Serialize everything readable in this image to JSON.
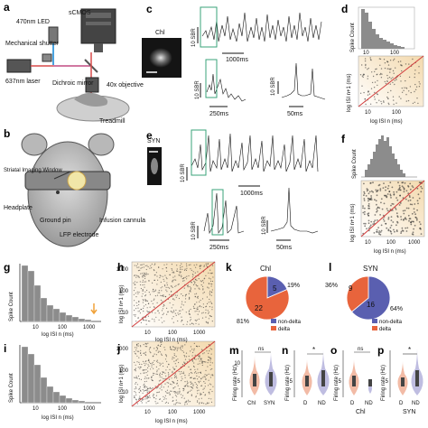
{
  "panel_letters": [
    "a",
    "b",
    "c",
    "d",
    "e",
    "f",
    "g",
    "h",
    "i",
    "j",
    "k",
    "l",
    "m",
    "n",
    "o",
    "p"
  ],
  "panel_a": {
    "labels": [
      "sCMOS",
      "470nm LED",
      "Mechanical shutter",
      "637nm laser",
      "Dichroic mirror",
      "40x objective",
      "Treadmill"
    ]
  },
  "panel_b": {
    "labels": [
      "Striatal Imaging Window",
      "Headplate",
      "Ground pin",
      "LFP electrode",
      "Infusion cannula"
    ]
  },
  "panel_c": {
    "cell_label": "Chl",
    "scale_sbr": "10 SBR",
    "scale_long": "1000ms",
    "scale_mid": "250ms",
    "scale_short": "50ms"
  },
  "panel_e": {
    "cell_label": "SYN",
    "scale_sbr": "10 SBR",
    "scale_long": "1000ms",
    "scale_mid": "250ms",
    "scale_short": "50ms"
  },
  "axes": {
    "spike_count": "Spike Count",
    "log_isi_n": "log ISI n (ms)",
    "log_isi_n1": "log ISI n+1 (ms)",
    "firing_rate": "Firing rate (Hz)"
  },
  "ticks": {
    "log": [
      "10",
      "100",
      "1000"
    ],
    "log_small": [
      "10",
      "100"
    ],
    "rate": [
      "5",
      "10"
    ],
    "rate_small": [
      "5"
    ]
  },
  "pies": {
    "k": {
      "title": "Chl",
      "nondelta_count": "5",
      "delta_count": "22",
      "nondelta_pct": "19%",
      "delta_pct": "81%"
    },
    "l": {
      "title": "SYN",
      "nondelta_count": "16",
      "delta_count": "9",
      "nondelta_pct": "64%",
      "delta_pct": "36%"
    },
    "legend": [
      "non-delta",
      "delta"
    ]
  },
  "violins": {
    "m": {
      "sig": "ns",
      "groups": [
        "Chl",
        "SYN"
      ]
    },
    "n": {
      "sig": "*",
      "groups": [
        "D",
        "ND"
      ]
    },
    "o": {
      "sig": "ns",
      "groups": [
        "D",
        "ND"
      ],
      "sub": "Chl"
    },
    "p": {
      "sig": "*",
      "groups": [
        "D",
        "ND"
      ],
      "sub": "SYN"
    }
  },
  "colors": {
    "nondelta": "#5a5fb0",
    "delta": "#e8643c",
    "trace_box": "#3aa37a",
    "unity_line": "#d23b3b",
    "hist_bar": "#8c8c8c",
    "scatter_bg": "#f6e3c4",
    "arrow": "#f0a23a",
    "violin_chl": "#e8845c",
    "violin_syn": "#8a86c8"
  },
  "chart_data": [
    {
      "panel": "k",
      "type": "pie",
      "title": "Chl",
      "categories": [
        "non-delta",
        "delta"
      ],
      "values": [
        5,
        22
      ],
      "percent": [
        19,
        81
      ]
    },
    {
      "panel": "l",
      "type": "pie",
      "title": "SYN",
      "categories": [
        "non-delta",
        "delta"
      ],
      "values": [
        16,
        9
      ],
      "percent": [
        64,
        36
      ]
    }
  ]
}
